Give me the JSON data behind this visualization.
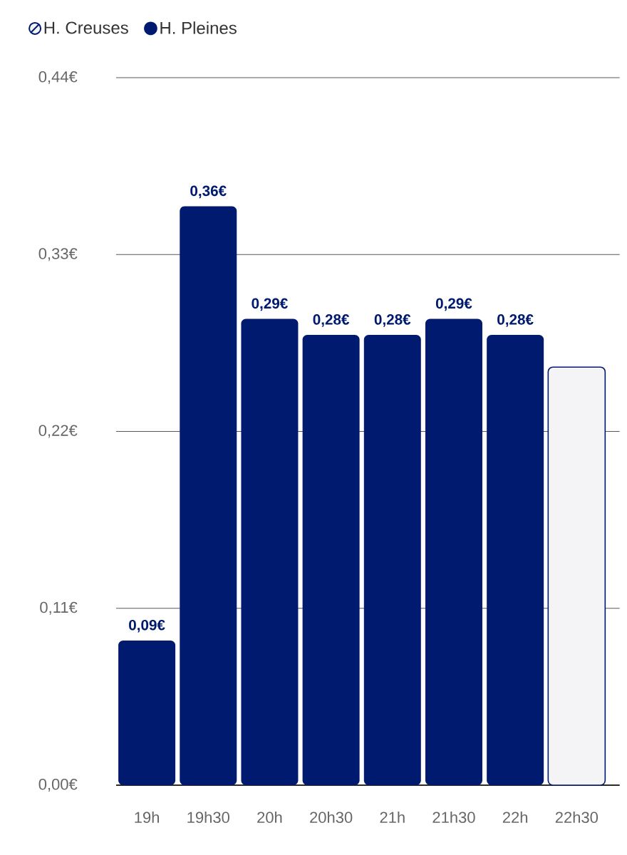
{
  "chart_data": {
    "type": "bar",
    "categories": [
      "19h",
      "19h30",
      "20h",
      "20h30",
      "21h",
      "21h30",
      "22h",
      "22h30"
    ],
    "series": [
      {
        "name": "H. Creuses",
        "color": "#001a70",
        "values": [
          null,
          null,
          null,
          null,
          null,
          null,
          null,
          0.26
        ],
        "value_labels": [
          null,
          null,
          null,
          null,
          null,
          null,
          null,
          null
        ]
      },
      {
        "name": "H. Pleines",
        "color": "#001a70",
        "values": [
          0.09,
          0.36,
          0.29,
          0.28,
          0.28,
          0.29,
          0.28,
          null
        ],
        "value_labels": [
          "0,09€",
          "0,36€",
          "0,29€",
          "0,28€",
          "0,28€",
          "0,29€",
          "0,28€",
          null
        ]
      }
    ],
    "ylim": [
      0,
      0.44
    ],
    "yticks": [
      {
        "value": 0,
        "label": "0,00€"
      },
      {
        "value": 0.11,
        "label": "0,11€"
      },
      {
        "value": 0.22,
        "label": "0,22€"
      },
      {
        "value": 0.33,
        "label": "0,33€"
      },
      {
        "value": 0.44,
        "label": "0,44€"
      }
    ],
    "grid": "y",
    "legend": "top left"
  }
}
